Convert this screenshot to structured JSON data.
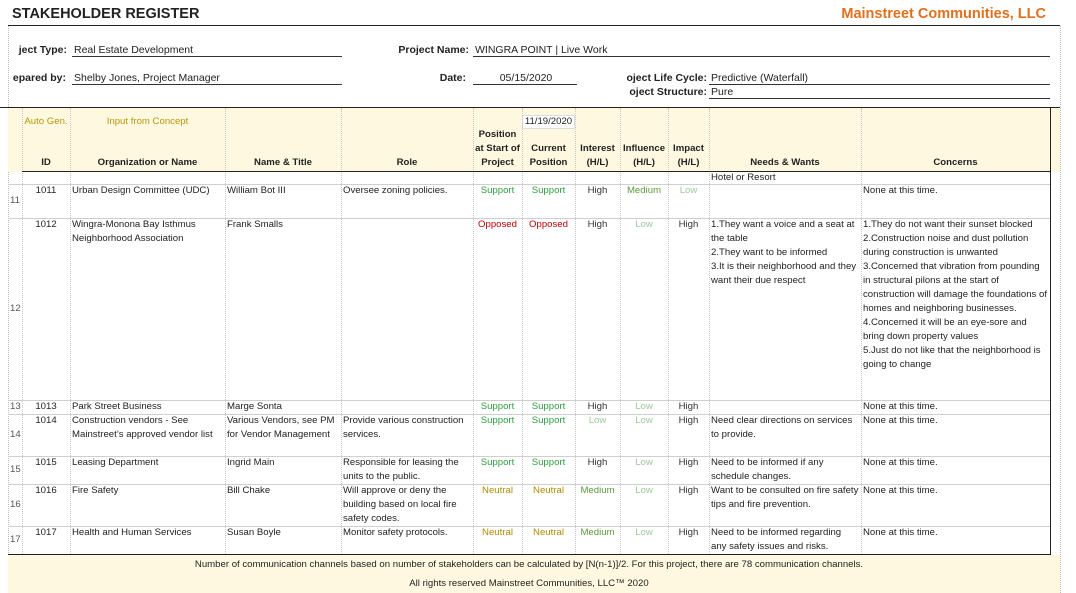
{
  "header": {
    "title": "STAKEHOLDER REGISTER",
    "company": "Mainstreet Communities, LLC"
  },
  "fields": [
    {
      "label": "ject Type:",
      "value": "Real Estate Development"
    },
    {
      "label": "Project Name:",
      "value": "WINGRA POINT | Live Work"
    },
    {
      "label": "epared by:",
      "value": "Shelby Jones, Project Manager"
    },
    {
      "label": "Date:",
      "value": "05/15/2020"
    },
    {
      "label": "oject Life Cycle:",
      "value": "Predictive (Waterfall)"
    },
    {
      "label": "oject Structure:",
      "value": "Pure"
    }
  ],
  "table": {
    "group_labels": {
      "auto": "Auto Gen.",
      "input": "Input from Concept",
      "date": "11/19/2020"
    },
    "columns": [
      "ID",
      "Organization or Name",
      "Name & Title",
      "Role",
      "Position at Start of Project",
      "Current Position",
      "Interest (H/L)",
      "Influence (H/L)",
      "Impact (H/L)",
      "Needs & Wants",
      "Concerns"
    ],
    "overflow": "Hotel or Resort",
    "rows": [
      {
        "number": "11",
        "cells": [
          "1011",
          "Urban Design Committee (UDC)",
          "William Bot III",
          "Oversee zoning policies.",
          "Support",
          "Support",
          "High",
          "Medium",
          "Low",
          null,
          "None at this time."
        ]
      },
      {
        "number": "12",
        "cells": [
          "1012",
          "Wingra-Monona Bay Isthmus Neighborhood Association",
          "Frank Smalls",
          null,
          "Opposed",
          "Opposed",
          "High",
          "Low",
          "High",
          [
            "1.They want a voice and a seat at the table",
            "2.They want to be informed",
            "3.It is their neighborhood and they want their due respect"
          ],
          [
            "1.They do not want their sunset blocked",
            "2.Construction noise and dust pollution during construction is unwanted",
            "3.Concerned that vibration from pounding in structural pilons at the start of construction will damage the foundations of homes and neighboring businesses.",
            "4.Concerned it will be an eye-sore and bring down property values",
            "5.Just do not like that the neighborhood is going to change"
          ]
        ]
      },
      {
        "number": "13",
        "cells": [
          "1013",
          "Park Street Business",
          "Marge Sonta",
          null,
          "Support",
          "Support",
          "High",
          "Low",
          "High",
          null,
          "None at this time."
        ]
      },
      {
        "number": "14",
        "cells": [
          "1014",
          "Construction vendors - See Mainstreet’s approved vendor list",
          "Various Vendors, see PM for Vendor Management",
          "Provide various construction services.",
          "Support",
          "Support",
          "Low",
          "Low",
          "High",
          "Need clear directions on services to provide.",
          "None at this time."
        ]
      },
      {
        "number": "15",
        "cells": [
          "1015",
          "Leasing Department",
          "Ingrid Main",
          "Responsible for leasing the units to the public.",
          "Support",
          "Support",
          "High",
          "Low",
          "High",
          "Need to be informed if any schedule changes.",
          "None at this time."
        ]
      },
      {
        "number": "16",
        "cells": [
          "1016",
          "Fire Safety",
          "Bill Chake",
          "Will approve or deny the building based on local fire safety codes.",
          "Neutral",
          "Neutral",
          "Medium",
          "Low",
          "High",
          "Want to be consulted on fire safety tips and fire prevention.",
          "None at this time."
        ]
      },
      {
        "number": "17",
        "cells": [
          "1017",
          "Health and Human Services",
          "Susan Boyle",
          "Monitor safety protocols.",
          "Neutral",
          "Neutral",
          "Medium",
          "Low",
          "High",
          "Need to be informed regarding any safety issues and risks.",
          "None at this time."
        ]
      }
    ]
  },
  "status_colors": {
    "Support": "#2e9e3e",
    "Opposed": "#c00000",
    "Neutral": "#b08a00",
    "High": "#333333",
    "Medium": "#5a9a3a",
    "Low": "#9cc99c"
  },
  "footer": {
    "note": "Number of communication channels based on number of stakeholders can be calculated by [N(n-1)]/2.  For this project, there are 78 communication channels.",
    "rights": "All rights reserved Mainstreet Communities, LLC™ 2020"
  }
}
